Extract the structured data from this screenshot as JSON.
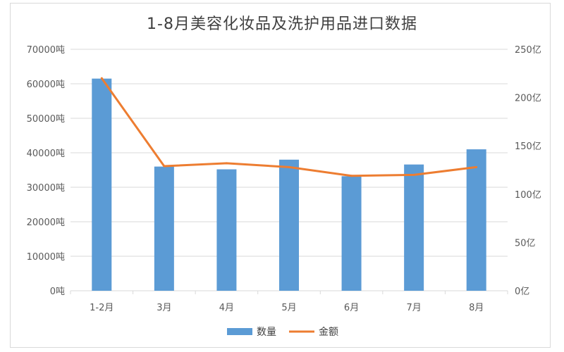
{
  "chart_data": {
    "type": "bar",
    "title": "1-8月美容化妆品及洗护用品进口数据",
    "categories": [
      "1-2月",
      "3月",
      "4月",
      "5月",
      "6月",
      "7月",
      "8月"
    ],
    "series": [
      {
        "name": "数量",
        "type": "bar",
        "axis": "left",
        "color": "#5b9bd5",
        "values": [
          61500,
          36000,
          35200,
          38000,
          33200,
          36600,
          41000
        ]
      },
      {
        "name": "金额",
        "type": "line",
        "axis": "right",
        "color": "#ed7d31",
        "values": [
          220,
          129,
          132,
          128,
          119,
          120,
          128
        ]
      }
    ],
    "y_left": {
      "ylim": [
        0,
        70000
      ],
      "ticks": [
        "0吨",
        "10000吨",
        "20000吨",
        "30000吨",
        "40000吨",
        "50000吨",
        "60000吨",
        "70000吨"
      ]
    },
    "y_right": {
      "ylim": [
        0,
        250
      ],
      "ticks": [
        "0亿",
        "50亿",
        "100亿",
        "150亿",
        "200亿",
        "250亿"
      ]
    },
    "grid": true,
    "legend_position": "bottom"
  }
}
